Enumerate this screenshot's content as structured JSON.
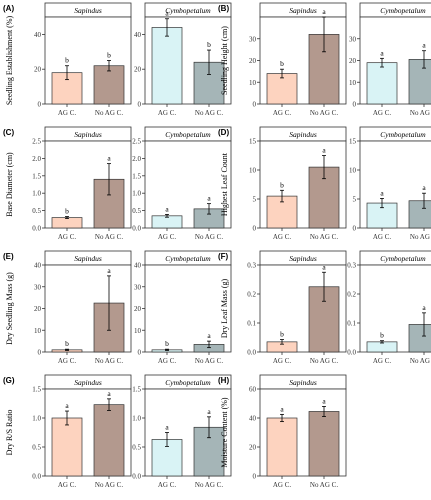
{
  "colors": {
    "sapindus_ag": "#fdd3bf",
    "sapindus_noag": "#b3998e",
    "cymbo_ag": "#d9f3f5",
    "cymbo_noag": "#a5b5b7"
  },
  "chart_data": [
    {
      "panel": "(A)",
      "type": "bar",
      "ylabel": "Seedling Establishment (%)",
      "ylim": [
        0,
        50
      ],
      "yticks": [
        0,
        20,
        40
      ],
      "facets": [
        {
          "title": "Sapindus",
          "categories": [
            "AG C.",
            "No AG C."
          ],
          "values": [
            18,
            22
          ],
          "errors": [
            4,
            3
          ],
          "letters": [
            "b",
            "b"
          ]
        },
        {
          "title": "Cymbopetalum",
          "categories": [
            "AG C.",
            "No AG C."
          ],
          "values": [
            44,
            24
          ],
          "errors": [
            5,
            7
          ],
          "letters": [
            "a",
            "b"
          ]
        }
      ]
    },
    {
      "panel": "(B)",
      "type": "bar",
      "ylabel": "Seedling Height (cm)",
      "ylim": [
        0,
        40
      ],
      "yticks": [
        0,
        10,
        20,
        30
      ],
      "facets": [
        {
          "title": "Sapindus",
          "categories": [
            "AG C.",
            "No AG C."
          ],
          "values": [
            14,
            32
          ],
          "errors": [
            2,
            8
          ],
          "letters": [
            "b",
            "a"
          ]
        },
        {
          "title": "Cymbopetalum",
          "categories": [
            "AG C.",
            "No AG C."
          ],
          "values": [
            19,
            20.5
          ],
          "errors": [
            2,
            4
          ],
          "letters": [
            "a",
            "a"
          ]
        }
      ]
    },
    {
      "panel": "(C)",
      "type": "bar",
      "ylabel": "Base Diameter (cm)",
      "ylim": [
        0,
        2.5
      ],
      "yticks": [
        "0.0",
        "0.5",
        "1.0",
        "1.5",
        "2.0",
        "2.5"
      ],
      "facets": [
        {
          "title": "Sapindus",
          "categories": [
            "AG C.",
            "No AG C."
          ],
          "values": [
            0.3,
            1.4
          ],
          "errors": [
            0.03,
            0.45
          ],
          "letters": [
            "b",
            "a"
          ]
        },
        {
          "title": "Cymbopetalum",
          "categories": [
            "AG C.",
            "No AG C."
          ],
          "values": [
            0.35,
            0.55
          ],
          "errors": [
            0.04,
            0.15
          ],
          "letters": [
            "a",
            "a"
          ]
        }
      ]
    },
    {
      "panel": "(D)",
      "type": "bar",
      "ylabel": "Highest Leaf Count",
      "ylim": [
        0,
        15
      ],
      "yticks": [
        0,
        5,
        10,
        15
      ],
      "facets": [
        {
          "title": "Sapindus",
          "categories": [
            "AG C.",
            "No AG C."
          ],
          "values": [
            5.5,
            10.5
          ],
          "errors": [
            1,
            2
          ],
          "letters": [
            "b",
            "a"
          ]
        },
        {
          "title": "Cymbopetalum",
          "categories": [
            "AG C.",
            "No AG C."
          ],
          "values": [
            4.3,
            4.7
          ],
          "errors": [
            0.8,
            1.3
          ],
          "letters": [
            "a",
            "a"
          ]
        }
      ]
    },
    {
      "panel": "(E)",
      "type": "bar",
      "ylabel": "Dry Seedling Mass (g)",
      "ylim": [
        0,
        40
      ],
      "yticks": [
        0,
        10,
        20,
        30,
        40
      ],
      "facets": [
        {
          "title": "Sapindus",
          "categories": [
            "AG C.",
            "No AG C."
          ],
          "values": [
            1,
            22.5
          ],
          "errors": [
            0.3,
            12.5
          ],
          "letters": [
            "b",
            "a"
          ]
        },
        {
          "title": "Cymbopetalum",
          "categories": [
            "AG C.",
            "No AG C."
          ],
          "values": [
            1,
            3.5
          ],
          "errors": [
            0.3,
            1.5
          ],
          "letters": [
            "b",
            "a"
          ]
        }
      ]
    },
    {
      "panel": "(F)",
      "type": "bar",
      "ylabel": "Dry Leaf Mass (g)",
      "ylim": [
        0,
        0.3
      ],
      "yticks": [
        "0.0",
        "0.1",
        "0.2",
        "0.3"
      ],
      "facets": [
        {
          "title": "Sapindus",
          "categories": [
            "AG C.",
            "No AG C."
          ],
          "values": [
            0.035,
            0.225
          ],
          "errors": [
            0.008,
            0.05
          ],
          "letters": [
            "b",
            "a"
          ]
        },
        {
          "title": "Cymbopetalum",
          "categories": [
            "AG C.",
            "No AG C."
          ],
          "values": [
            0.035,
            0.095
          ],
          "errors": [
            0.004,
            0.04
          ],
          "letters": [
            "b",
            "a"
          ]
        }
      ]
    },
    {
      "panel": "(G)",
      "type": "bar",
      "ylabel": "Dry R/S Ratio",
      "ylim": [
        0,
        1.5
      ],
      "yticks": [
        "0.0",
        "0.5",
        "1.0",
        "1.5"
      ],
      "facets": [
        {
          "title": "Sapindus",
          "categories": [
            "AG C.",
            "No AG C."
          ],
          "values": [
            1.0,
            1.23
          ],
          "errors": [
            0.12,
            0.1
          ],
          "letters": [
            "a",
            "a"
          ]
        },
        {
          "title": "Cymbopetalum",
          "categories": [
            "AG C.",
            "No AG C."
          ],
          "values": [
            0.63,
            0.84
          ],
          "errors": [
            0.12,
            0.18
          ],
          "letters": [
            "a",
            "a"
          ]
        }
      ]
    },
    {
      "panel": "(H)",
      "type": "bar",
      "ylabel": "Moisture Content (%)",
      "ylim": [
        0,
        60
      ],
      "yticks": [
        0,
        20,
        40,
        60
      ],
      "facets": [
        {
          "title": "Sapindus",
          "categories": [
            "AG C.",
            "No AG C."
          ],
          "values": [
            40,
            44.5
          ],
          "errors": [
            2.5,
            3.5
          ],
          "letters": [
            "a",
            "a"
          ]
        }
      ]
    }
  ]
}
